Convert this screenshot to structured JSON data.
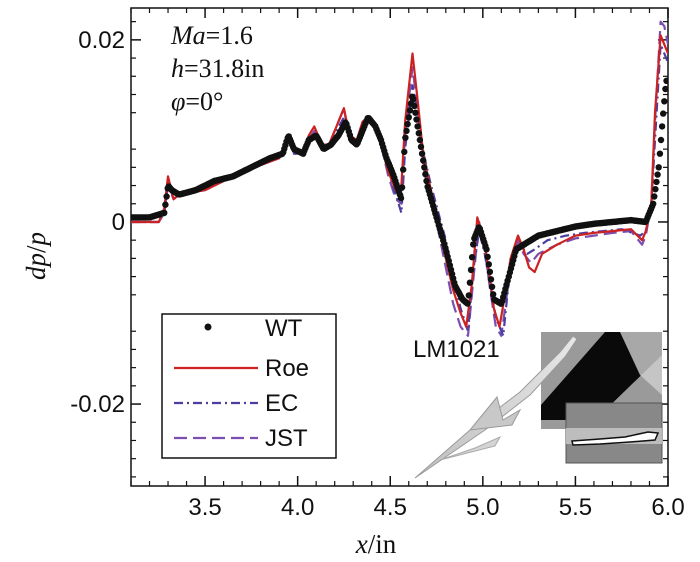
{
  "chart_data": {
    "type": "line",
    "xlabel_italic": "x",
    "xlabel_unit": "/in",
    "ylabel_parts": [
      "dp",
      "/",
      "p"
    ],
    "xlim": [
      3.1,
      6.0
    ],
    "ylim": [
      -0.029,
      0.0235
    ],
    "xticks": [
      {
        "v": 3.5,
        "label": "3.5"
      },
      {
        "v": 4.0,
        "label": "4.0"
      },
      {
        "v": 4.5,
        "label": "4.5"
      },
      {
        "v": 5.0,
        "label": "5.0"
      },
      {
        "v": 5.5,
        "label": "5.5"
      },
      {
        "v": 6.0,
        "label": "6.0"
      }
    ],
    "yticks": [
      {
        "v": 0.02,
        "label": "0.02"
      },
      {
        "v": 0.0,
        "label": "0"
      },
      {
        "v": -0.02,
        "label": "-0.02"
      }
    ],
    "annotations": [
      {
        "italic": "Ma",
        "rest": "=1.6"
      },
      {
        "italic": "h",
        "rest": "=31.8in"
      },
      {
        "italic": "φ",
        "rest": "=0°"
      }
    ],
    "model_label": "LM1021",
    "series": [
      {
        "name": "WT",
        "style": "markers",
        "color": "#111111",
        "points": [
          [
            3.1,
            0.0005
          ],
          [
            3.2,
            0.0005
          ],
          [
            3.28,
            0.001
          ],
          [
            3.3,
            0.004
          ],
          [
            3.32,
            0.0035
          ],
          [
            3.36,
            0.003
          ],
          [
            3.45,
            0.0035
          ],
          [
            3.55,
            0.0045
          ],
          [
            3.65,
            0.005
          ],
          [
            3.75,
            0.006
          ],
          [
            3.85,
            0.007
          ],
          [
            3.92,
            0.0075
          ],
          [
            3.95,
            0.0095
          ],
          [
            3.98,
            0.008
          ],
          [
            4.03,
            0.0075
          ],
          [
            4.06,
            0.009
          ],
          [
            4.1,
            0.0095
          ],
          [
            4.14,
            0.008
          ],
          [
            4.18,
            0.0085
          ],
          [
            4.22,
            0.0095
          ],
          [
            4.26,
            0.011
          ],
          [
            4.29,
            0.009
          ],
          [
            4.32,
            0.0085
          ],
          [
            4.35,
            0.01
          ],
          [
            4.38,
            0.0115
          ],
          [
            4.42,
            0.0105
          ],
          [
            4.45,
            0.009
          ],
          [
            4.48,
            0.007
          ],
          [
            4.52,
            0.005
          ],
          [
            4.56,
            0.0025
          ],
          [
            4.58,
            0.009
          ],
          [
            4.62,
            0.014
          ],
          [
            4.66,
            0.009
          ],
          [
            4.7,
            0.004
          ],
          [
            4.75,
            0.0005
          ],
          [
            4.8,
            -0.003
          ],
          [
            4.85,
            -0.007
          ],
          [
            4.89,
            -0.0085
          ],
          [
            4.92,
            -0.009
          ],
          [
            4.95,
            -0.002
          ],
          [
            4.98,
            -0.0005
          ],
          [
            5.02,
            -0.003
          ],
          [
            5.06,
            -0.0085
          ],
          [
            5.1,
            -0.009
          ],
          [
            5.14,
            -0.006
          ],
          [
            5.18,
            -0.003
          ],
          [
            5.22,
            -0.0025
          ],
          [
            5.26,
            -0.002
          ],
          [
            5.3,
            -0.0015
          ],
          [
            5.4,
            -0.001
          ],
          [
            5.5,
            -0.0005
          ],
          [
            5.6,
            -0.0002
          ],
          [
            5.7,
            0.0
          ],
          [
            5.8,
            0.0002
          ],
          [
            5.88,
            0.0
          ],
          [
            5.92,
            0.002
          ],
          [
            5.95,
            0.006
          ],
          [
            5.97,
            0.011
          ],
          [
            5.99,
            0.0155
          ],
          [
            6.0,
            0.0155
          ]
        ]
      },
      {
        "name": "Roe",
        "style": "solid",
        "color": "#cc2222",
        "points": [
          [
            3.1,
            0.0
          ],
          [
            3.25,
            0.0
          ],
          [
            3.28,
            0.0015
          ],
          [
            3.3,
            0.005
          ],
          [
            3.33,
            0.0025
          ],
          [
            3.36,
            0.003
          ],
          [
            3.5,
            0.0035
          ],
          [
            3.7,
            0.0055
          ],
          [
            3.9,
            0.007
          ],
          [
            3.95,
            0.0095
          ],
          [
            3.98,
            0.008
          ],
          [
            4.02,
            0.0075
          ],
          [
            4.06,
            0.0095
          ],
          [
            4.09,
            0.0105
          ],
          [
            4.13,
            0.0085
          ],
          [
            4.17,
            0.0085
          ],
          [
            4.21,
            0.0105
          ],
          [
            4.25,
            0.0125
          ],
          [
            4.28,
            0.0095
          ],
          [
            4.32,
            0.009
          ],
          [
            4.35,
            0.011
          ],
          [
            4.38,
            0.0115
          ],
          [
            4.42,
            0.0105
          ],
          [
            4.45,
            0.0085
          ],
          [
            4.49,
            0.0055
          ],
          [
            4.53,
            0.0035
          ],
          [
            4.56,
            0.004
          ],
          [
            4.58,
            0.011
          ],
          [
            4.62,
            0.0185
          ],
          [
            4.65,
            0.013
          ],
          [
            4.68,
            0.007
          ],
          [
            4.72,
            0.0035
          ],
          [
            4.76,
            0.0
          ],
          [
            4.8,
            -0.004
          ],
          [
            4.84,
            -0.0075
          ],
          [
            4.88,
            -0.01
          ],
          [
            4.91,
            -0.0115
          ],
          [
            4.94,
            -0.007
          ],
          [
            4.97,
            0.0005
          ],
          [
            5.0,
            -0.0015
          ],
          [
            5.03,
            -0.005
          ],
          [
            5.06,
            -0.0095
          ],
          [
            5.09,
            -0.0115
          ],
          [
            5.12,
            -0.008
          ],
          [
            5.15,
            -0.004
          ],
          [
            5.19,
            -0.0015
          ],
          [
            5.22,
            -0.003
          ],
          [
            5.25,
            -0.005
          ],
          [
            5.28,
            -0.0055
          ],
          [
            5.32,
            -0.0035
          ],
          [
            5.4,
            -0.0025
          ],
          [
            5.5,
            -0.0015
          ],
          [
            5.6,
            -0.0012
          ],
          [
            5.7,
            -0.001
          ],
          [
            5.8,
            -0.0008
          ],
          [
            5.86,
            -0.002
          ],
          [
            5.88,
            -0.001
          ],
          [
            5.91,
            0.002
          ],
          [
            5.93,
            0.012
          ],
          [
            5.96,
            0.0205
          ],
          [
            5.98,
            0.0195
          ],
          [
            6.0,
            0.0185
          ]
        ]
      },
      {
        "name": "EC",
        "style": "dashdot",
        "color": "#4a3fa0",
        "points": [
          [
            3.1,
            0.0
          ],
          [
            3.25,
            0.0
          ],
          [
            3.28,
            0.001
          ],
          [
            3.3,
            0.0045
          ],
          [
            3.33,
            0.0025
          ],
          [
            3.36,
            0.003
          ],
          [
            3.5,
            0.0035
          ],
          [
            3.7,
            0.0055
          ],
          [
            3.9,
            0.007
          ],
          [
            3.95,
            0.0095
          ],
          [
            3.98,
            0.0075
          ],
          [
            4.02,
            0.0075
          ],
          [
            4.06,
            0.009
          ],
          [
            4.09,
            0.0095
          ],
          [
            4.13,
            0.008
          ],
          [
            4.17,
            0.0085
          ],
          [
            4.21,
            0.01
          ],
          [
            4.25,
            0.0115
          ],
          [
            4.28,
            0.009
          ],
          [
            4.32,
            0.009
          ],
          [
            4.35,
            0.0105
          ],
          [
            4.38,
            0.011
          ],
          [
            4.42,
            0.0105
          ],
          [
            4.45,
            0.0085
          ],
          [
            4.49,
            0.0055
          ],
          [
            4.53,
            0.003
          ],
          [
            4.56,
            0.001
          ],
          [
            4.58,
            0.008
          ],
          [
            4.62,
            0.015
          ],
          [
            4.65,
            0.0115
          ],
          [
            4.68,
            0.0075
          ],
          [
            4.72,
            0.004
          ],
          [
            4.76,
            0.001
          ],
          [
            4.8,
            -0.002
          ],
          [
            4.84,
            -0.006
          ],
          [
            4.88,
            -0.0095
          ],
          [
            4.92,
            -0.012
          ],
          [
            4.95,
            -0.005
          ],
          [
            4.98,
            -0.001
          ],
          [
            5.01,
            -0.0035
          ],
          [
            5.04,
            -0.007
          ],
          [
            5.07,
            -0.0105
          ],
          [
            5.11,
            -0.0125
          ],
          [
            5.14,
            -0.0065
          ],
          [
            5.17,
            -0.0035
          ],
          [
            5.2,
            -0.0025
          ],
          [
            5.24,
            -0.0035
          ],
          [
            5.28,
            -0.003
          ],
          [
            5.35,
            -0.002
          ],
          [
            5.45,
            -0.0015
          ],
          [
            5.55,
            -0.0012
          ],
          [
            5.65,
            -0.001
          ],
          [
            5.75,
            -0.0008
          ],
          [
            5.85,
            -0.0015
          ],
          [
            5.88,
            -0.001
          ],
          [
            5.91,
            0.002
          ],
          [
            5.93,
            0.009
          ],
          [
            5.96,
            0.0195
          ],
          [
            5.98,
            0.0185
          ],
          [
            6.0,
            0.0175
          ]
        ]
      },
      {
        "name": "JST",
        "style": "dashed",
        "color": "#7b4fb0",
        "points": [
          [
            3.1,
            0.0
          ],
          [
            3.25,
            0.0
          ],
          [
            3.28,
            0.001
          ],
          [
            3.3,
            0.004
          ],
          [
            3.33,
            0.0025
          ],
          [
            3.36,
            0.003
          ],
          [
            3.5,
            0.0035
          ],
          [
            3.7,
            0.0055
          ],
          [
            3.9,
            0.007
          ],
          [
            3.95,
            0.0095
          ],
          [
            3.98,
            0.0075
          ],
          [
            4.02,
            0.0075
          ],
          [
            4.06,
            0.009
          ],
          [
            4.09,
            0.01
          ],
          [
            4.13,
            0.008
          ],
          [
            4.17,
            0.0085
          ],
          [
            4.21,
            0.0105
          ],
          [
            4.25,
            0.0125
          ],
          [
            4.28,
            0.009
          ],
          [
            4.32,
            0.009
          ],
          [
            4.35,
            0.011
          ],
          [
            4.38,
            0.0115
          ],
          [
            4.42,
            0.0105
          ],
          [
            4.45,
            0.0085
          ],
          [
            4.49,
            0.005
          ],
          [
            4.53,
            0.0025
          ],
          [
            4.56,
            0.002
          ],
          [
            4.58,
            0.01
          ],
          [
            4.62,
            0.017
          ],
          [
            4.65,
            0.012
          ],
          [
            4.68,
            0.006
          ],
          [
            4.72,
            0.002
          ],
          [
            4.76,
            -0.001
          ],
          [
            4.8,
            -0.005
          ],
          [
            4.84,
            -0.009
          ],
          [
            4.88,
            -0.0115
          ],
          [
            4.92,
            -0.0125
          ],
          [
            4.95,
            -0.006
          ],
          [
            4.98,
            0.0
          ],
          [
            5.01,
            -0.003
          ],
          [
            5.04,
            -0.0075
          ],
          [
            5.07,
            -0.0115
          ],
          [
            5.1,
            -0.0125
          ],
          [
            5.13,
            -0.008
          ],
          [
            5.16,
            -0.004
          ],
          [
            5.19,
            -0.002
          ],
          [
            5.22,
            -0.0035
          ],
          [
            5.26,
            -0.0045
          ],
          [
            5.3,
            -0.0035
          ],
          [
            5.4,
            -0.0025
          ],
          [
            5.5,
            -0.0018
          ],
          [
            5.6,
            -0.0015
          ],
          [
            5.7,
            -0.0012
          ],
          [
            5.8,
            -0.001
          ],
          [
            5.86,
            -0.0025
          ],
          [
            5.88,
            -0.0015
          ],
          [
            5.91,
            0.002
          ],
          [
            5.93,
            0.011
          ],
          [
            5.96,
            0.022
          ],
          [
            5.98,
            0.0215
          ],
          [
            6.0,
            0.0195
          ]
        ]
      }
    ]
  }
}
